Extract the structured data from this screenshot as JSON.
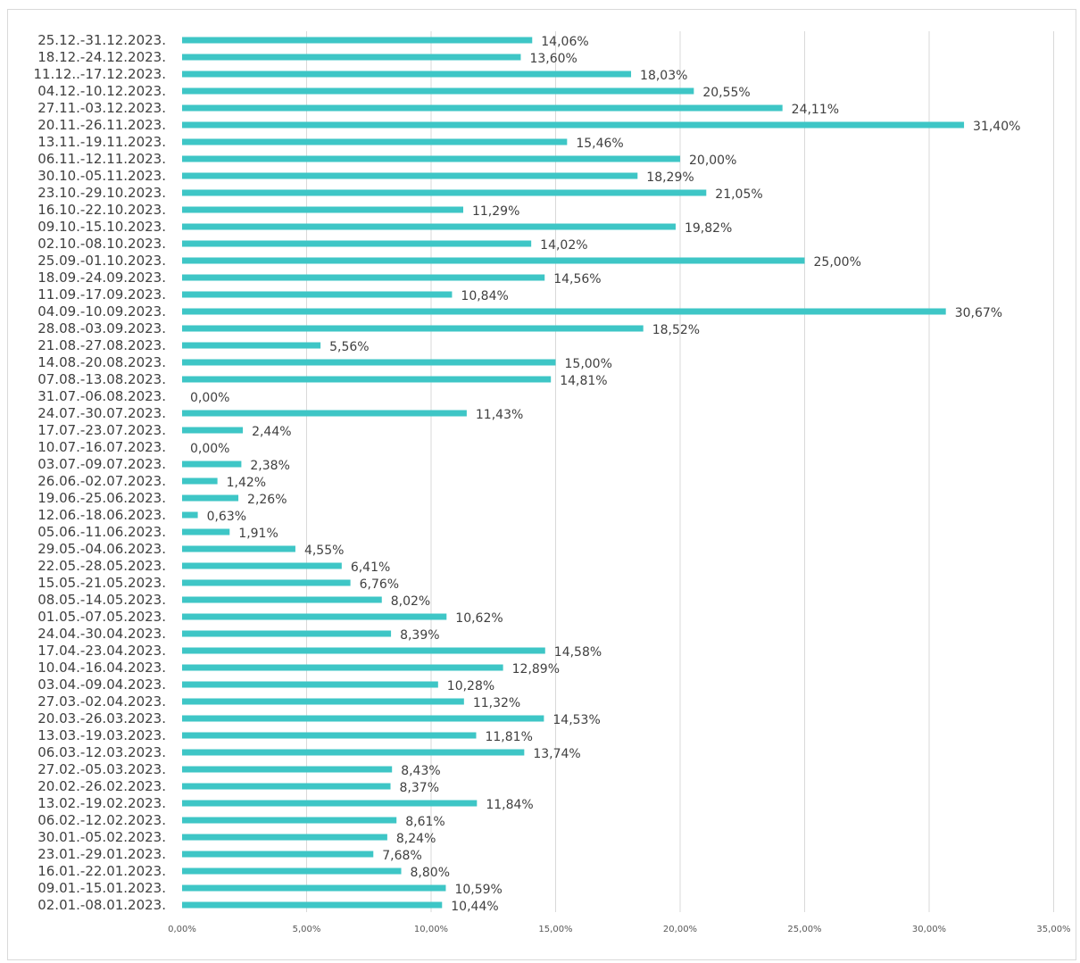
{
  "chart_data": {
    "type": "bar",
    "orientation": "horizontal",
    "title": "",
    "xlabel": "",
    "ylabel": "",
    "xlim": [
      0,
      35
    ],
    "x_ticks": [
      "0,00%",
      "5,00%",
      "10,00%",
      "15,00%",
      "20,00%",
      "25,00%",
      "30,00%",
      "35,00%"
    ],
    "grid": true,
    "bar_color": "#3ec6c6",
    "categories": [
      "25.12.-31.12.2023.",
      "18.12.-24.12.2023.",
      "11.12..-17.12.2023.",
      "04.12.-10.12.2023.",
      "27.11.-03.12.2023.",
      "20.11.-26.11.2023.",
      "13.11.-19.11.2023.",
      "06.11.-12.11.2023.",
      "30.10.-05.11.2023.",
      "23.10.-29.10.2023.",
      "16.10.-22.10.2023.",
      "09.10.-15.10.2023.",
      "02.10.-08.10.2023.",
      "25.09.-01.10.2023.",
      "18.09.-24.09.2023.",
      "11.09.-17.09.2023.",
      "04.09.-10.09.2023.",
      "28.08.-03.09.2023.",
      "21.08.-27.08.2023.",
      "14.08.-20.08.2023.",
      "07.08.-13.08.2023.",
      "31.07.-06.08.2023.",
      "24.07.-30.07.2023.",
      "17.07.-23.07.2023.",
      "10.07.-16.07.2023.",
      "03.07.-09.07.2023.",
      "26.06.-02.07.2023.",
      "19.06.-25.06.2023.",
      "12.06.-18.06.2023.",
      "05.06.-11.06.2023.",
      "29.05.-04.06.2023.",
      "22.05.-28.05.2023.",
      "15.05.-21.05.2023.",
      "08.05.-14.05.2023.",
      "01.05.-07.05.2023.",
      "24.04.-30.04.2023.",
      "17.04.-23.04.2023.",
      "10.04.-16.04.2023.",
      "03.04.-09.04.2023.",
      "27.03.-02.04.2023.",
      "20.03.-26.03.2023.",
      "13.03.-19.03.2023.",
      "06.03.-12.03.2023.",
      "27.02.-05.03.2023.",
      "20.02.-26.02.2023.",
      "13.02.-19.02.2023.",
      "06.02.-12.02.2023.",
      "30.01.-05.02.2023.",
      "23.01.-29.01.2023.",
      "16.01.-22.01.2023.",
      "09.01.-15.01.2023.",
      "02.01.-08.01.2023."
    ],
    "values": [
      14.06,
      13.6,
      18.03,
      20.55,
      24.11,
      31.4,
      15.46,
      20.0,
      18.29,
      21.05,
      11.29,
      19.82,
      14.02,
      25.0,
      14.56,
      10.84,
      30.67,
      18.52,
      5.56,
      15.0,
      14.81,
      0.0,
      11.43,
      2.44,
      0.0,
      2.38,
      1.42,
      2.26,
      0.63,
      1.91,
      4.55,
      6.41,
      6.76,
      8.02,
      10.62,
      8.39,
      14.58,
      12.89,
      10.28,
      11.32,
      14.53,
      11.81,
      13.74,
      8.43,
      8.37,
      11.84,
      8.61,
      8.24,
      7.68,
      8.8,
      10.59,
      10.44
    ],
    "data_labels": [
      "14,06%",
      "13,60%",
      "18,03%",
      "20,55%",
      "24,11%",
      "31,40%",
      "15,46%",
      "20,00%",
      "18,29%",
      "21,05%",
      "11,29%",
      "19,82%",
      "14,02%",
      "25,00%",
      "14,56%",
      "10,84%",
      "30,67%",
      "18,52%",
      "5,56%",
      "15,00%",
      "14,81%",
      "0,00%",
      "11,43%",
      "2,44%",
      "0,00%",
      "2,38%",
      "1,42%",
      "2,26%",
      "0,63%",
      "1,91%",
      "4,55%",
      "6,41%",
      "6,76%",
      "8,02%",
      "10,62%",
      "8,39%",
      "14,58%",
      "12,89%",
      "10,28%",
      "11,32%",
      "14,53%",
      "11,81%",
      "13,74%",
      "8,43%",
      "8,37%",
      "11,84%",
      "8,61%",
      "8,24%",
      "7,68%",
      "8,80%",
      "10,59%",
      "10,44%"
    ]
  }
}
